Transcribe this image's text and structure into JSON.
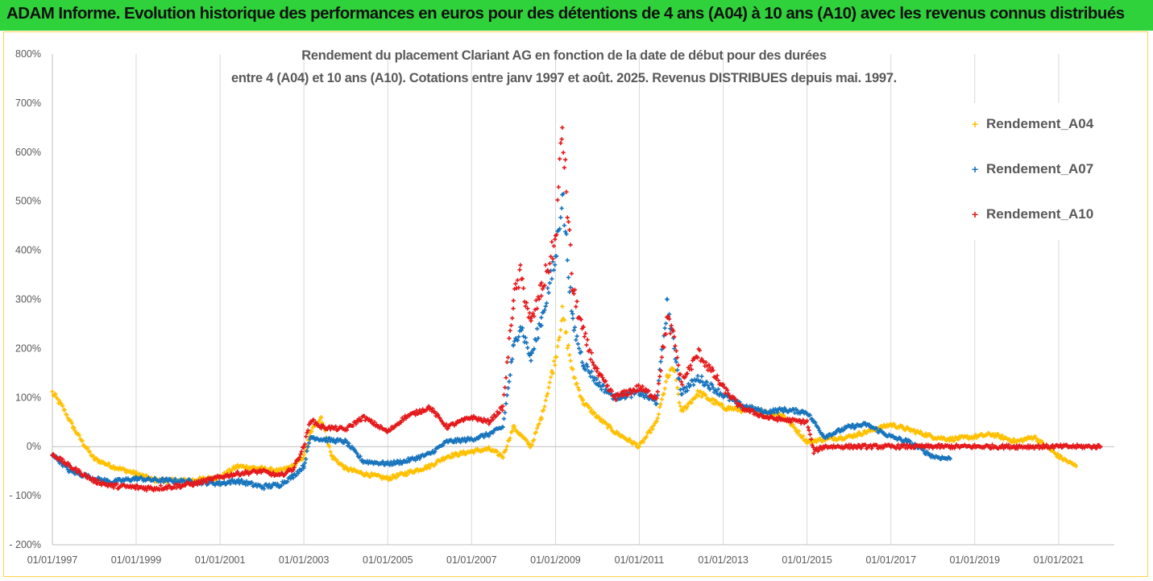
{
  "header": {
    "title": "ADAM Informe. Evolution historique des performances en euros pour des détentions de 4 ans (A04) à 10 ans (A10) avec les revenus connus distribués"
  },
  "chart_data": {
    "type": "scatter",
    "title_line1": "Rendement du placement Clariant AG en fonction de la date de début pour des durées",
    "title_line2": "entre 4 (A04) et 10 ans (A10). Cotations entre janv 1997 et août. 2025. Revenus DISTRIBUES depuis mai. 1997.",
    "marker": "+",
    "ylim": [
      -200,
      800
    ],
    "y_ticks": [
      800,
      700,
      600,
      500,
      400,
      300,
      200,
      100,
      0,
      -100,
      -200
    ],
    "y_tick_labels": [
      "800%",
      "700%",
      "600%",
      "500%",
      "400%",
      "300%",
      "200%",
      "100%",
      "0%",
      "- 100%",
      "- 200%"
    ],
    "xlim": [
      "1997-01-01",
      "2022-05-01"
    ],
    "x_tick_labels": [
      "01/01/1997",
      "01/01/1999",
      "01/01/2001",
      "01/01/2003",
      "01/01/2005",
      "01/01/2007",
      "01/01/2009",
      "01/01/2011",
      "01/01/2013",
      "01/01/2015",
      "01/01/2017",
      "01/01/2019",
      "01/01/2021"
    ],
    "legend_position": "top-right",
    "grid": "vertical",
    "series": [
      {
        "name": "Rendement_A04",
        "color": "#ffc000",
        "points": [
          [
            "1997-01-01",
            110
          ],
          [
            "1997-04-01",
            80
          ],
          [
            "1997-07-01",
            40
          ],
          [
            "1997-10-01",
            5
          ],
          [
            "1998-01-01",
            -25
          ],
          [
            "1998-06-01",
            -40
          ],
          [
            "1999-01-01",
            -55
          ],
          [
            "1999-06-01",
            -68
          ],
          [
            "2000-01-01",
            -70
          ],
          [
            "2000-06-01",
            -68
          ],
          [
            "2001-01-01",
            -62
          ],
          [
            "2001-06-01",
            -40
          ],
          [
            "2002-01-01",
            -45
          ],
          [
            "2002-06-01",
            -50
          ],
          [
            "2002-10-01",
            -40
          ],
          [
            "2003-01-01",
            -20
          ],
          [
            "2003-03-01",
            30
          ],
          [
            "2003-06-01",
            60
          ],
          [
            "2003-09-01",
            -20
          ],
          [
            "2004-01-01",
            -45
          ],
          [
            "2004-06-01",
            -55
          ],
          [
            "2005-01-01",
            -65
          ],
          [
            "2005-06-01",
            -55
          ],
          [
            "2006-01-01",
            -40
          ],
          [
            "2006-06-01",
            -20
          ],
          [
            "2007-01-01",
            -10
          ],
          [
            "2007-06-01",
            -5
          ],
          [
            "2007-10-01",
            -20
          ],
          [
            "2008-01-01",
            40
          ],
          [
            "2008-06-01",
            0
          ],
          [
            "2008-09-01",
            60
          ],
          [
            "2008-12-01",
            150
          ],
          [
            "2009-01-01",
            180
          ],
          [
            "2009-03-01",
            270
          ],
          [
            "2009-06-01",
            150
          ],
          [
            "2009-09-01",
            90
          ],
          [
            "2010-01-01",
            60
          ],
          [
            "2010-06-01",
            30
          ],
          [
            "2011-01-01",
            0
          ],
          [
            "2011-06-01",
            50
          ],
          [
            "2011-09-01",
            140
          ],
          [
            "2011-11-01",
            160
          ],
          [
            "2012-01-01",
            70
          ],
          [
            "2012-06-01",
            110
          ],
          [
            "2013-01-01",
            80
          ],
          [
            "2013-06-01",
            75
          ],
          [
            "2014-01-01",
            70
          ],
          [
            "2014-06-01",
            65
          ],
          [
            "2015-01-01",
            10
          ],
          [
            "2015-06-01",
            15
          ],
          [
            "2016-01-01",
            20
          ],
          [
            "2016-06-01",
            30
          ],
          [
            "2017-01-01",
            45
          ],
          [
            "2017-06-01",
            35
          ],
          [
            "2018-01-01",
            20
          ],
          [
            "2018-06-01",
            15
          ],
          [
            "2019-01-01",
            20
          ],
          [
            "2019-06-01",
            25
          ],
          [
            "2020-01-01",
            10
          ],
          [
            "2020-06-01",
            20
          ],
          [
            "2021-01-01",
            -20
          ],
          [
            "2021-06-01",
            -40
          ]
        ]
      },
      {
        "name": "Rendement_A07",
        "color": "#1874bd",
        "points": [
          [
            "1997-01-01",
            -15
          ],
          [
            "1997-06-01",
            -50
          ],
          [
            "1998-01-01",
            -65
          ],
          [
            "1998-06-01",
            -72
          ],
          [
            "1999-01-01",
            -65
          ],
          [
            "1999-06-01",
            -68
          ],
          [
            "2000-01-01",
            -70
          ],
          [
            "2000-06-01",
            -72
          ],
          [
            "2001-01-01",
            -75
          ],
          [
            "2001-06-01",
            -70
          ],
          [
            "2002-01-01",
            -82
          ],
          [
            "2002-06-01",
            -78
          ],
          [
            "2002-10-01",
            -60
          ],
          [
            "2003-01-01",
            -40
          ],
          [
            "2003-03-01",
            20
          ],
          [
            "2003-06-01",
            15
          ],
          [
            "2004-01-01",
            10
          ],
          [
            "2004-06-01",
            -30
          ],
          [
            "2005-01-01",
            -35
          ],
          [
            "2005-06-01",
            -30
          ],
          [
            "2006-01-01",
            -15
          ],
          [
            "2006-06-01",
            10
          ],
          [
            "2007-01-01",
            15
          ],
          [
            "2007-06-01",
            25
          ],
          [
            "2007-10-01",
            40
          ],
          [
            "2008-01-01",
            200
          ],
          [
            "2008-03-01",
            250
          ],
          [
            "2008-06-01",
            180
          ],
          [
            "2008-09-01",
            260
          ],
          [
            "2009-01-01",
            380
          ],
          [
            "2009-03-01",
            520
          ],
          [
            "2009-06-01",
            250
          ],
          [
            "2009-09-01",
            170
          ],
          [
            "2010-01-01",
            130
          ],
          [
            "2010-06-01",
            100
          ],
          [
            "2011-01-01",
            110
          ],
          [
            "2011-06-01",
            90
          ],
          [
            "2011-09-01",
            290
          ],
          [
            "2011-11-01",
            200
          ],
          [
            "2012-01-01",
            110
          ],
          [
            "2012-06-01",
            140
          ],
          [
            "2013-01-01",
            105
          ],
          [
            "2013-06-01",
            85
          ],
          [
            "2014-01-01",
            70
          ],
          [
            "2014-06-01",
            75
          ],
          [
            "2015-01-01",
            70
          ],
          [
            "2015-06-01",
            20
          ],
          [
            "2016-01-01",
            40
          ],
          [
            "2016-06-01",
            45
          ],
          [
            "2017-01-01",
            20
          ],
          [
            "2017-06-01",
            10
          ],
          [
            "2018-01-01",
            -20
          ],
          [
            "2018-06-01",
            -25
          ]
        ]
      },
      {
        "name": "Rendement_A10",
        "color": "#e41a1c",
        "points": [
          [
            "1997-01-01",
            -15
          ],
          [
            "1997-06-01",
            -40
          ],
          [
            "1998-01-01",
            -70
          ],
          [
            "1998-06-01",
            -80
          ],
          [
            "1999-01-01",
            -83
          ],
          [
            "1999-06-01",
            -85
          ],
          [
            "2000-01-01",
            -80
          ],
          [
            "2000-06-01",
            -75
          ],
          [
            "2001-01-01",
            -62
          ],
          [
            "2001-06-01",
            -55
          ],
          [
            "2002-01-01",
            -50
          ],
          [
            "2002-06-01",
            -60
          ],
          [
            "2002-10-01",
            -45
          ],
          [
            "2003-01-01",
            0
          ],
          [
            "2003-03-01",
            55
          ],
          [
            "2003-06-01",
            40
          ],
          [
            "2004-01-01",
            35
          ],
          [
            "2004-06-01",
            60
          ],
          [
            "2005-01-01",
            30
          ],
          [
            "2005-06-01",
            60
          ],
          [
            "2006-01-01",
            80
          ],
          [
            "2006-06-01",
            40
          ],
          [
            "2007-01-01",
            60
          ],
          [
            "2007-06-01",
            50
          ],
          [
            "2007-10-01",
            80
          ],
          [
            "2008-01-01",
            300
          ],
          [
            "2008-03-01",
            350
          ],
          [
            "2008-06-01",
            250
          ],
          [
            "2008-09-01",
            320
          ],
          [
            "2009-01-01",
            420
          ],
          [
            "2009-03-01",
            650
          ],
          [
            "2009-06-01",
            320
          ],
          [
            "2009-09-01",
            230
          ],
          [
            "2010-01-01",
            150
          ],
          [
            "2010-06-01",
            100
          ],
          [
            "2011-01-01",
            120
          ],
          [
            "2011-06-01",
            100
          ],
          [
            "2011-09-01",
            260
          ],
          [
            "2011-11-01",
            220
          ],
          [
            "2012-01-01",
            130
          ],
          [
            "2012-06-01",
            190
          ],
          [
            "2013-01-01",
            120
          ],
          [
            "2013-06-01",
            80
          ],
          [
            "2014-01-01",
            60
          ],
          [
            "2014-06-01",
            55
          ],
          [
            "2015-01-01",
            50
          ],
          [
            "2015-03-01",
            -10
          ],
          [
            "2015-06-01",
            0
          ],
          [
            "2016-01-01",
            0
          ],
          [
            "2017-01-01",
            0
          ],
          [
            "2018-01-01",
            0
          ],
          [
            "2019-01-01",
            0
          ],
          [
            "2020-01-01",
            0
          ],
          [
            "2021-01-01",
            0
          ],
          [
            "2022-01-01",
            0
          ]
        ]
      }
    ]
  }
}
